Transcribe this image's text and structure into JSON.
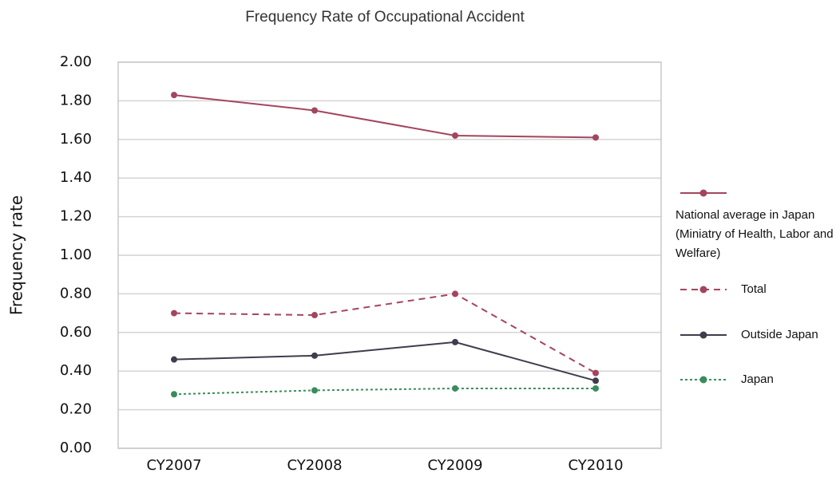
{
  "chart_data": {
    "type": "line",
    "title": "Frequency Rate of Occupational Accident",
    "y_label": "Frequency rate",
    "categories": [
      "CY2007",
      "CY2008",
      "CY2009",
      "CY2010"
    ],
    "series": [
      {
        "name": "National average in Japan (Miniatry of Health, Labor and Welfare)",
        "color": "#a3455e",
        "dash": "solid",
        "values": [
          1.83,
          1.75,
          1.62,
          1.61
        ]
      },
      {
        "name": "Total",
        "color": "#a3455e",
        "dash": "dashed",
        "values": [
          0.7,
          0.69,
          0.8,
          0.39
        ]
      },
      {
        "name": "Outside Japan",
        "color": "#3d3d4d",
        "dash": "solid",
        "values": [
          0.46,
          0.48,
          0.55,
          0.35
        ]
      },
      {
        "name": "Japan",
        "color": "#3a8c5c",
        "dash": "dotted",
        "values": [
          0.28,
          0.3,
          0.31,
          0.31
        ]
      }
    ],
    "ylim": [
      0,
      2
    ],
    "yticks": [
      {
        "value": 0,
        "label": "0.00"
      },
      {
        "value": 0.2,
        "label": "0.20"
      },
      {
        "value": 0.4,
        "label": "0.40"
      },
      {
        "value": 0.6,
        "label": "0.60"
      },
      {
        "value": 0.8,
        "label": "0.80"
      },
      {
        "value": 1,
        "label": "1.00"
      },
      {
        "value": 1.2,
        "label": "1.20"
      },
      {
        "value": 1.4,
        "label": "1.40"
      },
      {
        "value": 1.6,
        "label": "1.60"
      },
      {
        "value": 1.8,
        "label": "1.80"
      },
      {
        "value": 2,
        "label": "2.00"
      }
    ],
    "grid": true,
    "legend": "right"
  }
}
